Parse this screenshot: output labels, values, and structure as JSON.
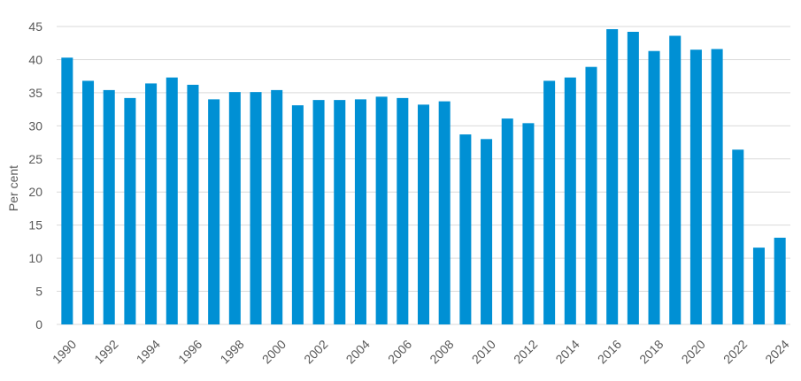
{
  "chart_data": {
    "type": "bar",
    "ylabel": "Per cent",
    "xlabel": "",
    "title": "",
    "ylim": [
      0,
      45
    ],
    "yticks": [
      0,
      5,
      10,
      15,
      20,
      25,
      30,
      35,
      40,
      45
    ],
    "grid": true,
    "bar_color": "#0090d4",
    "grid_color": "#d9d9d9",
    "categories": [
      "1990",
      "1991",
      "1992",
      "1993",
      "1994",
      "1995",
      "1996",
      "1997",
      "1998",
      "1999",
      "2000",
      "2001",
      "2002",
      "2003",
      "2004",
      "2005",
      "2006",
      "2007",
      "2008",
      "2009",
      "2010",
      "2011",
      "2012",
      "2013",
      "2014",
      "2015",
      "2016",
      "2017",
      "2018",
      "2019",
      "2020",
      "2021",
      "2022",
      "2023",
      "2024"
    ],
    "x_tick_labels": [
      "1990",
      "1992",
      "1994",
      "1996",
      "1998",
      "2000",
      "2002",
      "2004",
      "2006",
      "2008",
      "2010",
      "2012",
      "2014",
      "2016",
      "2018",
      "2020",
      "2022",
      "2024"
    ],
    "values": [
      40.3,
      36.8,
      35.4,
      34.2,
      36.4,
      37.3,
      36.2,
      34.0,
      35.1,
      35.1,
      35.4,
      33.1,
      33.9,
      33.9,
      34.0,
      34.4,
      34.2,
      33.2,
      33.7,
      28.7,
      28.0,
      31.1,
      30.4,
      36.8,
      37.3,
      38.9,
      44.6,
      44.2,
      41.3,
      43.6,
      41.5,
      41.6,
      26.4,
      11.6,
      13.1
    ]
  }
}
